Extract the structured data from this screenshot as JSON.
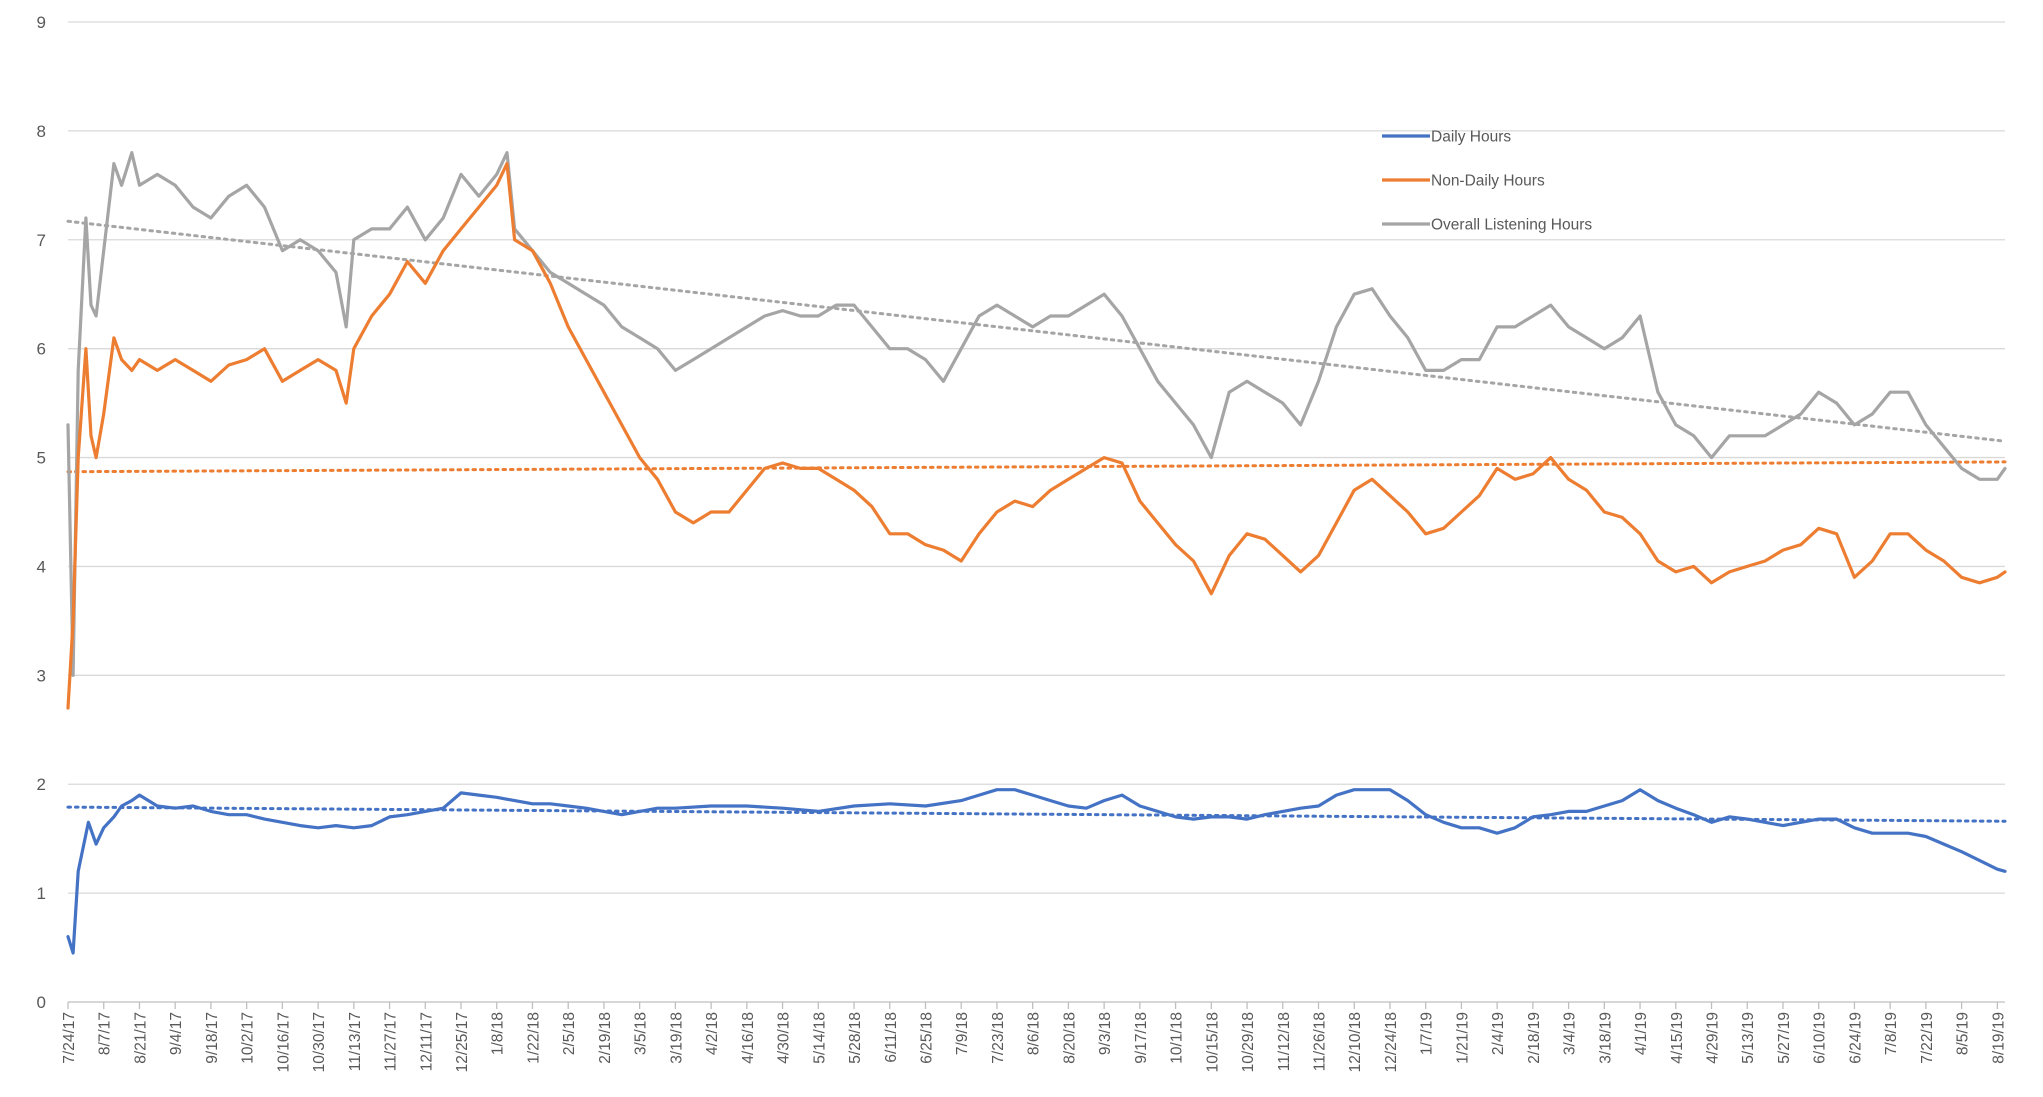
{
  "chart_data": {
    "type": "line",
    "title": "",
    "xlabel": "",
    "ylabel": "",
    "ylim": [
      0,
      9
    ],
    "yticks": [
      0,
      1,
      2,
      3,
      4,
      5,
      6,
      7,
      8,
      9
    ],
    "x_tick_labels": [
      "7/24/17",
      "8/7/17",
      "8/21/17",
      "9/4/17",
      "9/18/17",
      "10/2/17",
      "10/16/17",
      "10/30/17",
      "11/13/17",
      "11/27/17",
      "12/11/17",
      "12/25/17",
      "1/8/18",
      "1/22/18",
      "2/5/18",
      "2/19/18",
      "3/5/18",
      "3/19/18",
      "4/2/18",
      "4/16/18",
      "4/30/18",
      "5/14/18",
      "5/28/18",
      "6/11/18",
      "6/25/18",
      "7/9/18",
      "7/23/18",
      "8/6/18",
      "8/20/18",
      "9/3/18",
      "9/17/18",
      "10/1/18",
      "10/15/18",
      "10/29/18",
      "11/12/18",
      "11/26/18",
      "12/10/18",
      "12/24/18",
      "1/7/19",
      "1/21/19",
      "2/4/19",
      "2/18/19",
      "3/4/19",
      "3/18/19",
      "4/1/19",
      "4/15/19",
      "4/29/19",
      "5/13/19",
      "5/27/19",
      "6/10/19",
      "6/24/19",
      "7/8/19",
      "7/22/19",
      "8/5/19",
      "8/19/19"
    ],
    "grid": true,
    "legend_position": "top-right",
    "series": [
      {
        "name": "Daily Hours",
        "color": "#4472c4",
        "dates": [
          "7/24/17",
          "7/26/17",
          "7/28/17",
          "8/1/17",
          "8/4/17",
          "8/7/17",
          "8/11/17",
          "8/14/17",
          "8/18/17",
          "8/21/17",
          "8/28/17",
          "9/4/17",
          "9/11/17",
          "9/18/17",
          "9/25/17",
          "10/2/17",
          "10/9/17",
          "10/16/17",
          "10/23/17",
          "10/30/17",
          "11/6/17",
          "11/13/17",
          "11/20/17",
          "11/27/17",
          "12/4/17",
          "12/11/17",
          "12/18/17",
          "12/25/17",
          "1/1/18",
          "1/8/18",
          "1/15/18",
          "1/22/18",
          "1/29/18",
          "2/5/18",
          "2/12/18",
          "2/19/18",
          "2/26/18",
          "3/5/18",
          "3/12/18",
          "3/19/18",
          "4/2/18",
          "4/16/18",
          "4/30/18",
          "5/14/18",
          "5/28/18",
          "6/11/18",
          "6/25/18",
          "7/9/18",
          "7/16/18",
          "7/23/18",
          "7/30/18",
          "8/6/18",
          "8/13/18",
          "8/20/18",
          "8/27/18",
          "9/3/18",
          "9/10/18",
          "9/17/18",
          "9/24/18",
          "10/1/18",
          "10/8/18",
          "10/15/18",
          "10/22/18",
          "10/29/18",
          "11/5/18",
          "11/12/18",
          "11/19/18",
          "11/26/18",
          "12/3/18",
          "12/10/18",
          "12/17/18",
          "12/24/18",
          "12/31/18",
          "1/7/19",
          "1/14/19",
          "1/21/19",
          "1/28/19",
          "2/4/19",
          "2/11/19",
          "2/18/19",
          "2/25/19",
          "3/4/19",
          "3/11/19",
          "3/18/19",
          "3/25/19",
          "4/1/19",
          "4/8/19",
          "4/15/19",
          "4/22/19",
          "4/29/19",
          "5/6/19",
          "5/13/19",
          "5/20/19",
          "5/27/19",
          "6/3/19",
          "6/10/19",
          "6/17/19",
          "6/24/19",
          "7/1/19",
          "7/8/19",
          "7/15/19",
          "7/22/19",
          "7/29/19",
          "8/5/19",
          "8/12/19",
          "8/19/19",
          "8/22/19"
        ],
        "values": [
          0.6,
          0.45,
          1.2,
          1.65,
          1.45,
          1.6,
          1.7,
          1.8,
          1.85,
          1.9,
          1.8,
          1.78,
          1.8,
          1.75,
          1.72,
          1.72,
          1.68,
          1.65,
          1.62,
          1.6,
          1.62,
          1.6,
          1.62,
          1.7,
          1.72,
          1.75,
          1.78,
          1.92,
          1.9,
          1.88,
          1.85,
          1.82,
          1.82,
          1.8,
          1.78,
          1.75,
          1.72,
          1.75,
          1.78,
          1.78,
          1.8,
          1.8,
          1.78,
          1.75,
          1.8,
          1.82,
          1.8,
          1.85,
          1.9,
          1.95,
          1.95,
          1.9,
          1.85,
          1.8,
          1.78,
          1.85,
          1.9,
          1.8,
          1.75,
          1.7,
          1.68,
          1.7,
          1.7,
          1.68,
          1.72,
          1.75,
          1.78,
          1.8,
          1.9,
          1.95,
          1.95,
          1.95,
          1.85,
          1.72,
          1.65,
          1.6,
          1.6,
          1.55,
          1.6,
          1.7,
          1.72,
          1.75,
          1.75,
          1.8,
          1.85,
          1.95,
          1.85,
          1.78,
          1.72,
          1.65,
          1.7,
          1.68,
          1.65,
          1.62,
          1.65,
          1.68,
          1.68,
          1.6,
          1.55,
          1.55,
          1.55,
          1.52,
          1.45,
          1.38,
          1.3,
          1.22,
          1.2
        ]
      },
      {
        "name": "Non-Daily Hours",
        "color": "#ed7d31",
        "dates": [
          "7/24/17",
          "7/26/17",
          "7/28/17",
          "7/31/17",
          "8/2/17",
          "8/4/17",
          "8/7/17",
          "8/11/17",
          "8/14/17",
          "8/18/17",
          "8/21/17",
          "8/28/17",
          "9/4/17",
          "9/11/17",
          "9/18/17",
          "9/25/17",
          "10/2/17",
          "10/9/17",
          "10/16/17",
          "10/23/17",
          "10/30/17",
          "11/6/17",
          "11/10/17",
          "11/13/17",
          "11/20/17",
          "11/27/17",
          "12/4/17",
          "12/11/17",
          "12/18/17",
          "12/25/17",
          "1/1/18",
          "1/8/18",
          "1/12/18",
          "1/15/18",
          "1/22/18",
          "1/29/18",
          "2/5/18",
          "2/12/18",
          "2/19/18",
          "2/26/18",
          "3/5/18",
          "3/12/18",
          "3/19/18",
          "3/26/18",
          "4/2/18",
          "4/9/18",
          "4/16/18",
          "4/23/18",
          "4/30/18",
          "5/7/18",
          "5/14/18",
          "5/21/18",
          "5/28/18",
          "6/4/18",
          "6/11/18",
          "6/18/18",
          "6/25/18",
          "7/2/18",
          "7/9/18",
          "7/16/18",
          "7/23/18",
          "7/30/18",
          "8/6/18",
          "8/13/18",
          "8/20/18",
          "8/27/18",
          "9/3/18",
          "9/10/18",
          "9/17/18",
          "9/24/18",
          "10/1/18",
          "10/8/18",
          "10/15/18",
          "10/22/18",
          "10/29/18",
          "11/5/18",
          "11/12/18",
          "11/19/18",
          "11/26/18",
          "12/3/18",
          "12/10/18",
          "12/17/18",
          "12/24/18",
          "12/31/18",
          "1/7/19",
          "1/14/19",
          "1/21/19",
          "1/28/19",
          "2/4/19",
          "2/11/19",
          "2/18/19",
          "2/25/19",
          "3/4/19",
          "3/11/19",
          "3/18/19",
          "3/25/19",
          "4/1/19",
          "4/8/19",
          "4/15/19",
          "4/22/19",
          "4/29/19",
          "5/6/19",
          "5/13/19",
          "5/20/19",
          "5/27/19",
          "6/3/19",
          "6/10/19",
          "6/17/19",
          "6/24/19",
          "7/1/19",
          "7/8/19",
          "7/15/19",
          "7/22/19",
          "7/29/19",
          "8/5/19",
          "8/12/19",
          "8/19/19",
          "8/22/19"
        ],
        "values": [
          2.7,
          3.5,
          5.0,
          6.0,
          5.2,
          5.0,
          5.4,
          6.1,
          5.9,
          5.8,
          5.9,
          5.8,
          5.9,
          5.8,
          5.7,
          5.85,
          5.9,
          6.0,
          5.7,
          5.8,
          5.9,
          5.8,
          5.5,
          6.0,
          6.3,
          6.5,
          6.8,
          6.6,
          6.9,
          7.1,
          7.3,
          7.5,
          7.7,
          7.0,
          6.9,
          6.6,
          6.2,
          5.9,
          5.6,
          5.3,
          5.0,
          4.8,
          4.5,
          4.4,
          4.5,
          4.5,
          4.7,
          4.9,
          4.95,
          4.9,
          4.9,
          4.8,
          4.7,
          4.55,
          4.3,
          4.3,
          4.2,
          4.15,
          4.05,
          4.3,
          4.5,
          4.6,
          4.55,
          4.7,
          4.8,
          4.9,
          5.0,
          4.95,
          4.6,
          4.4,
          4.2,
          4.05,
          3.75,
          4.1,
          4.3,
          4.25,
          4.1,
          3.95,
          4.1,
          4.4,
          4.7,
          4.8,
          4.65,
          4.5,
          4.3,
          4.35,
          4.5,
          4.65,
          4.9,
          4.8,
          4.85,
          5.0,
          4.8,
          4.7,
          4.5,
          4.45,
          4.3,
          4.05,
          3.95,
          4.0,
          3.85,
          3.95,
          4.0,
          4.05,
          4.15,
          4.2,
          4.35,
          4.3,
          3.9,
          4.05,
          4.3,
          4.3,
          4.15,
          4.05,
          3.9,
          3.85,
          3.9,
          3.95
        ]
      },
      {
        "name": "Overall Listening Hours",
        "color": "#a5a5a5",
        "dates": [
          "7/24/17",
          "7/26/17",
          "7/28/17",
          "7/31/17",
          "8/2/17",
          "8/4/17",
          "8/7/17",
          "8/11/17",
          "8/14/17",
          "8/18/17",
          "8/21/17",
          "8/28/17",
          "9/4/17",
          "9/11/17",
          "9/18/17",
          "9/25/17",
          "10/2/17",
          "10/9/17",
          "10/16/17",
          "10/23/17",
          "10/30/17",
          "11/6/17",
          "11/10/17",
          "11/13/17",
          "11/20/17",
          "11/27/17",
          "12/4/17",
          "12/11/17",
          "12/18/17",
          "12/25/17",
          "1/1/18",
          "1/8/18",
          "1/12/18",
          "1/15/18",
          "1/22/18",
          "1/29/18",
          "2/5/18",
          "2/12/18",
          "2/19/18",
          "2/26/18",
          "3/5/18",
          "3/12/18",
          "3/19/18",
          "3/26/18",
          "4/2/18",
          "4/9/18",
          "4/16/18",
          "4/23/18",
          "4/30/18",
          "5/7/18",
          "5/14/18",
          "5/21/18",
          "5/28/18",
          "6/4/18",
          "6/11/18",
          "6/18/18",
          "6/25/18",
          "7/2/18",
          "7/9/18",
          "7/16/18",
          "7/23/18",
          "7/30/18",
          "8/6/18",
          "8/13/18",
          "8/20/18",
          "8/27/18",
          "9/3/18",
          "9/10/18",
          "9/17/18",
          "9/24/18",
          "10/1/18",
          "10/8/18",
          "10/15/18",
          "10/22/18",
          "10/29/18",
          "11/5/18",
          "11/12/18",
          "11/19/18",
          "11/26/18",
          "12/3/18",
          "12/10/18",
          "12/17/18",
          "12/24/18",
          "12/31/18",
          "1/7/19",
          "1/14/19",
          "1/21/19",
          "1/28/19",
          "2/4/19",
          "2/11/19",
          "2/18/19",
          "2/25/19",
          "3/4/19",
          "3/11/19",
          "3/18/19",
          "3/25/19",
          "4/1/19",
          "4/8/19",
          "4/15/19",
          "4/22/19",
          "4/29/19",
          "5/6/19",
          "5/13/19",
          "5/20/19",
          "5/27/19",
          "6/3/19",
          "6/10/19",
          "6/17/19",
          "6/24/19",
          "7/1/19",
          "7/8/19",
          "7/15/19",
          "7/22/19",
          "7/29/19",
          "8/5/19",
          "8/12/19",
          "8/19/19",
          "8/22/19"
        ],
        "values": [
          5.3,
          3.0,
          5.8,
          7.2,
          6.4,
          6.3,
          6.9,
          7.7,
          7.5,
          7.8,
          7.5,
          7.6,
          7.5,
          7.3,
          7.2,
          7.4,
          7.5,
          7.3,
          6.9,
          7.0,
          6.9,
          6.7,
          6.2,
          7.0,
          7.1,
          7.1,
          7.3,
          7.0,
          7.2,
          7.6,
          7.4,
          7.6,
          7.8,
          7.1,
          6.9,
          6.7,
          6.6,
          6.5,
          6.4,
          6.2,
          6.1,
          6.0,
          5.8,
          5.9,
          6.0,
          6.1,
          6.2,
          6.3,
          6.35,
          6.3,
          6.3,
          6.4,
          6.4,
          6.2,
          6.0,
          6.0,
          5.9,
          5.7,
          6.0,
          6.3,
          6.4,
          6.3,
          6.2,
          6.3,
          6.3,
          6.4,
          6.5,
          6.3,
          6.0,
          5.7,
          5.5,
          5.3,
          5.0,
          5.6,
          5.7,
          5.6,
          5.5,
          5.3,
          5.7,
          6.2,
          6.5,
          6.55,
          6.3,
          6.1,
          5.8,
          5.8,
          5.9,
          5.9,
          6.2,
          6.2,
          6.3,
          6.4,
          6.2,
          6.1,
          6.0,
          6.1,
          6.3,
          5.6,
          5.3,
          5.2,
          5.0,
          5.2,
          5.2,
          5.2,
          5.3,
          5.4,
          5.6,
          5.5,
          5.3,
          5.4,
          5.6,
          5.6,
          5.3,
          5.1,
          4.9,
          4.8,
          4.8,
          4.9
        ]
      }
    ],
    "trendlines": [
      {
        "series": "Daily Hours",
        "color": "#4472c4",
        "start": [
          "7/24/17",
          1.79
        ],
        "end": [
          "8/22/19",
          1.66
        ]
      },
      {
        "series": "Non-Daily Hours",
        "color": "#ed7d31",
        "start": [
          "7/24/17",
          4.87
        ],
        "end": [
          "8/22/19",
          4.96
        ]
      },
      {
        "series": "Overall Listening Hours",
        "color": "#a5a5a5",
        "start": [
          "7/24/17",
          7.17
        ],
        "end": [
          "8/22/19",
          5.15
        ]
      }
    ]
  }
}
